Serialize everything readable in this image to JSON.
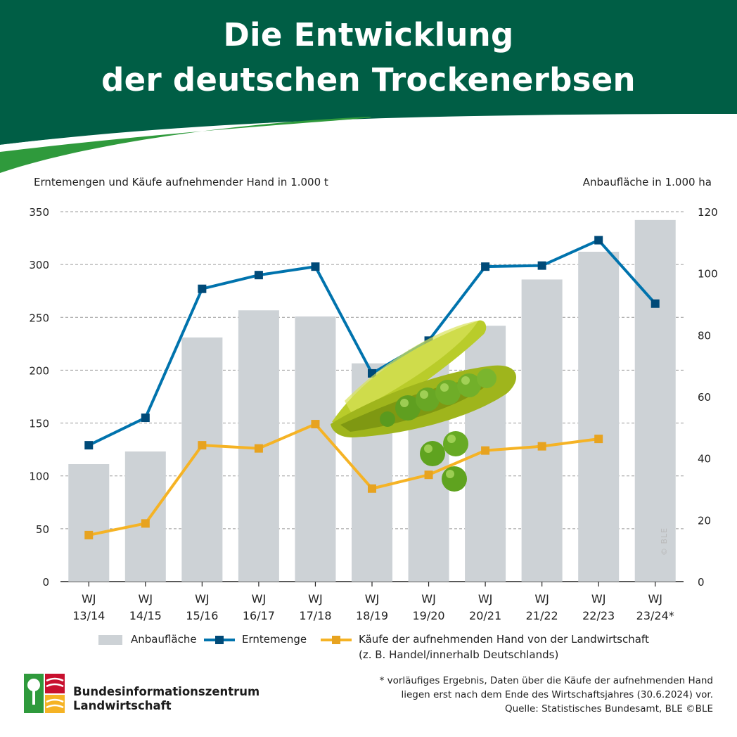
{
  "header": {
    "title_line1": "Die Entwicklung",
    "title_line2": "der deutschen Trockenerbsen",
    "bg_color": "#005e45"
  },
  "chart_data": {
    "type": "bar",
    "categories": [
      [
        "WJ",
        "13/14"
      ],
      [
        "WJ",
        "14/15"
      ],
      [
        "WJ",
        "15/16"
      ],
      [
        "WJ",
        "16/17"
      ],
      [
        "WJ",
        "17/18"
      ],
      [
        "WJ",
        "18/19"
      ],
      [
        "WJ",
        "19/20"
      ],
      [
        "WJ",
        "20/21"
      ],
      [
        "WJ",
        "21/22"
      ],
      [
        "WJ",
        "22/23"
      ],
      [
        "WJ",
        "23/24*"
      ]
    ],
    "ylabel_left": "Erntemengen und Käufe aufnehmender Hand in 1.000 t",
    "ylabel_right": "Anbaufläche in 1.000 ha",
    "ylim_left": [
      0,
      350
    ],
    "yticks_left": [
      0,
      50,
      100,
      150,
      200,
      250,
      300,
      350
    ],
    "ylim_right": [
      0,
      120
    ],
    "yticks_right": [
      0,
      20,
      40,
      60,
      80,
      100,
      120
    ],
    "grid": "dashed horizontal at left ticks",
    "series": [
      {
        "name": "Anbaufläche",
        "kind": "bar",
        "axis": "right",
        "color": "#cdd2d6",
        "values": [
          38.1,
          42.2,
          79.2,
          88.0,
          86.0,
          70.8,
          75.2,
          83.0,
          98.0,
          107.0,
          117.3
        ]
      },
      {
        "name": "Erntemenge",
        "kind": "line",
        "axis": "left",
        "color": "#0073ad",
        "marker_color": "#004a78",
        "values": [
          129,
          155,
          277,
          290,
          298,
          197,
          228,
          298,
          299,
          323,
          263
        ]
      },
      {
        "name": "Käufe der aufnehmenden Hand von der Landwirtschaft",
        "name_line2": "(z. B. Handel/innerhalb Deutschlands)",
        "kind": "line",
        "axis": "left",
        "color": "#f5b325",
        "marker_color": "#e7a320",
        "values": [
          44,
          55,
          129,
          126,
          149,
          88,
          101,
          124,
          128,
          135,
          null
        ]
      }
    ]
  },
  "footer": {
    "footnote_line1": "* vorläufiges Ergebnis, Daten über die Käufe der aufnehmenden Hand",
    "footnote_line2": "liegen erst nach dem Ende des Wirtschaftsjahres (30.6.2024) vor.",
    "footnote_line3": "Quelle: Statistisches Bundesamt, BLE ©BLE",
    "logo_line1": "Bundesinformationszentrum",
    "logo_line2": "Landwirtschaft",
    "copyright": "© BLE"
  }
}
